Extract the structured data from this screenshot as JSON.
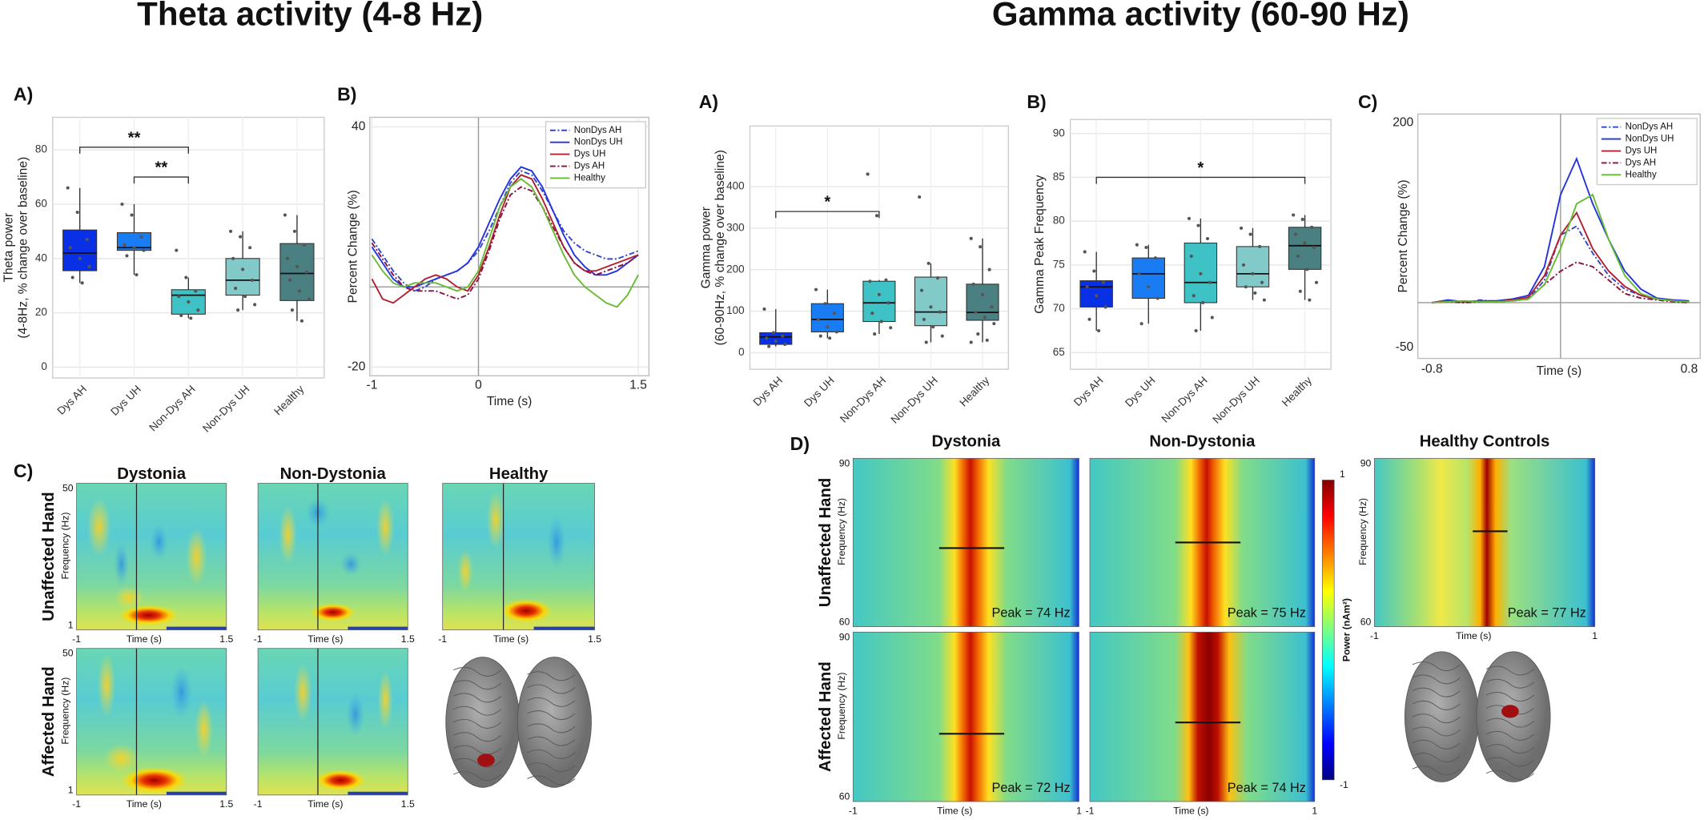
{
  "headings": [
    "Theta activity (4-8 Hz)",
    "Gamma activity (60-90 Hz)"
  ],
  "chart_data": [
    {
      "type": "box",
      "panel": "A)",
      "ylabel": [
        "Theta power",
        "(4-8Hz, % change over baseline)"
      ],
      "categories": [
        "Dys AH",
        "Dys UH",
        "Non-Dys AH",
        "Non-Dys UH",
        "Healthy"
      ],
      "boxes": [
        {
          "q1": 35.5,
          "median": 42,
          "q3": 50.5,
          "whislo": 31,
          "whishi": 66,
          "color": "#0a30e6",
          "points": [
            66,
            57,
            47,
            44,
            40,
            37,
            33,
            31
          ]
        },
        {
          "q1": 43,
          "median": 44,
          "q3": 49.5,
          "whislo": 34,
          "whishi": 60,
          "color": "#1a7cf2",
          "points": [
            60,
            56,
            48,
            45,
            44,
            43,
            41,
            34
          ]
        },
        {
          "q1": 19.5,
          "median": 26.5,
          "q3": 28.5,
          "whislo": 18,
          "whishi": 33,
          "color": "#3fc2c6",
          "points": [
            43,
            33,
            28,
            26,
            24,
            21,
            19,
            18
          ]
        },
        {
          "q1": 26.5,
          "median": 32,
          "q3": 40,
          "whislo": 21,
          "whishi": 50,
          "color": "#82caca",
          "points": [
            50,
            48,
            44,
            40,
            36,
            32,
            29,
            26,
            23,
            21
          ]
        },
        {
          "q1": 24.5,
          "median": 34.5,
          "q3": 45.5,
          "whislo": 17,
          "whishi": 56,
          "color": "#4a8081",
          "points": [
            56,
            50,
            45,
            40,
            37,
            35,
            32,
            28,
            25,
            21,
            17
          ]
        }
      ],
      "annotations": [
        {
          "from": "Dys AH",
          "to": "Non-Dys AH",
          "y": 81,
          "label": "**"
        },
        {
          "from": "Dys UH",
          "to": "Non-Dys AH",
          "y": 70,
          "label": "**"
        }
      ],
      "ylim": [
        -4,
        92
      ],
      "yticks": [
        0,
        20,
        40,
        60,
        80
      ],
      "grid": true
    },
    {
      "type": "line",
      "panel": "B)",
      "xlabel": "Time (s)",
      "ylabel": "Percent Change (%)",
      "x": [
        -1,
        -0.9,
        -0.8,
        -0.7,
        -0.6,
        -0.5,
        -0.4,
        -0.3,
        -0.2,
        -0.1,
        0,
        0.1,
        0.2,
        0.3,
        0.4,
        0.5,
        0.6,
        0.7,
        0.8,
        0.9,
        1,
        1.1,
        1.2,
        1.3,
        1.4,
        1.5
      ],
      "series": [
        {
          "name": "NonDys AH",
          "color": "#3344cc",
          "linestyle": "dashdot",
          "values": [
            12,
            8,
            4,
            1,
            -1,
            0,
            2,
            3,
            4,
            6,
            9,
            14,
            20,
            26,
            29,
            28,
            24,
            19,
            14,
            11,
            9,
            8,
            7,
            7,
            8,
            9
          ]
        },
        {
          "name": "NonDys UH",
          "color": "#2233dd",
          "linestyle": "solid",
          "values": [
            10,
            6,
            2,
            0,
            0,
            1,
            2,
            3,
            4,
            6,
            10,
            16,
            22,
            27,
            30,
            29,
            25,
            19,
            13,
            8,
            5,
            3,
            3,
            4,
            6,
            8
          ]
        },
        {
          "name": "Dys UH",
          "color": "#b02030",
          "linestyle": "solid",
          "values": [
            2,
            -3,
            -4,
            -2,
            0,
            2,
            3,
            2,
            0,
            -1,
            3,
            10,
            18,
            25,
            28,
            27,
            22,
            16,
            10,
            6,
            4,
            4,
            5,
            6,
            7,
            8
          ]
        },
        {
          "name": "Dys AH",
          "color": "#8a1040",
          "linestyle": "dashdot",
          "values": [
            11,
            7,
            3,
            0,
            -1,
            -1,
            -1,
            -2,
            -3,
            -2,
            2,
            9,
            17,
            23,
            25,
            24,
            20,
            15,
            10,
            6,
            4,
            3,
            4,
            5,
            6,
            8
          ]
        },
        {
          "name": "Healthy",
          "color": "#66bb33",
          "linestyle": "solid",
          "values": [
            8,
            4,
            1,
            0,
            1,
            1,
            1,
            0,
            -1,
            0,
            4,
            12,
            20,
            25,
            27,
            25,
            20,
            14,
            8,
            3,
            0,
            -2,
            -4,
            -5,
            -2,
            3
          ]
        }
      ],
      "xlim": [
        -1.02,
        1.6
      ],
      "xticks": [
        -1,
        0,
        1.5
      ],
      "ylim": [
        -22.2,
        42.4
      ],
      "yticks": [
        -20,
        40
      ],
      "grid": true,
      "legend": "upper right"
    },
    {
      "type": "box",
      "panel": "A)",
      "ylabel": [
        "Gamma power",
        "(60-90Hz, % change over baseline)"
      ],
      "categories": [
        "Dys AH",
        "Dys UH",
        "Non-Dys AH",
        "Non-Dys UH",
        "Healthy"
      ],
      "boxes": [
        {
          "q1": 20,
          "median": 38,
          "q3": 48,
          "whislo": 15,
          "whishi": 105,
          "color": "#0a30e6",
          "points": [
            105,
            48,
            40,
            35,
            28,
            20,
            15
          ]
        },
        {
          "q1": 50,
          "median": 80,
          "q3": 118,
          "whislo": 35,
          "whishi": 152,
          "color": "#1a7cf2",
          "points": [
            152,
            118,
            95,
            80,
            62,
            50,
            40,
            35
          ]
        },
        {
          "q1": 75,
          "median": 120,
          "q3": 172,
          "whislo": 45,
          "whishi": 175,
          "color": "#3fc2c6",
          "points": [
            430,
            330,
            175,
            172,
            140,
            120,
            95,
            75,
            60,
            45
          ]
        },
        {
          "q1": 65,
          "median": 98,
          "q3": 182,
          "whislo": 25,
          "whishi": 215,
          "color": "#82caca",
          "points": [
            375,
            215,
            180,
            150,
            110,
            98,
            80,
            62,
            40,
            25
          ]
        },
        {
          "q1": 78,
          "median": 97,
          "q3": 165,
          "whislo": 25,
          "whishi": 275,
          "color": "#4a8081",
          "points": [
            275,
            255,
            200,
            165,
            140,
            110,
            97,
            85,
            70,
            45,
            30,
            25
          ]
        }
      ],
      "annotations": [
        {
          "from": "Dys AH",
          "to": "Non-Dys AH",
          "y": 340,
          "label": "*"
        }
      ],
      "ylim": [
        -40,
        546
      ],
      "yticks": [
        0,
        100,
        200,
        300,
        400
      ],
      "grid": true
    },
    {
      "type": "box",
      "panel": "B)",
      "ylabel": [
        "Gamma Peak Frequency"
      ],
      "categories": [
        "Dys AH",
        "Dys UH",
        "Non-Dys AH",
        "Non-Dys UH",
        "Healthy"
      ],
      "boxes": [
        {
          "q1": 70.2,
          "median": 72.5,
          "q3": 73.2,
          "whislo": 67.5,
          "whishi": 76.5,
          "color": "#0a30e6",
          "points": [
            76.5,
            74.3,
            73,
            72.5,
            71.5,
            70.2,
            68.8,
            67.5
          ]
        },
        {
          "q1": 71.2,
          "median": 74,
          "q3": 75.8,
          "whislo": 68.3,
          "whishi": 77.3,
          "color": "#1a7cf2",
          "points": [
            77.3,
            77,
            75.8,
            74,
            72.5,
            71.2,
            68.3
          ]
        },
        {
          "q1": 70.7,
          "median": 73,
          "q3": 77.5,
          "whislo": 67.5,
          "whishi": 80.3,
          "color": "#3fc2c6",
          "points": [
            80.3,
            79.5,
            78,
            76,
            74,
            73,
            71.5,
            70.7,
            69,
            67.5
          ]
        },
        {
          "q1": 72.5,
          "median": 74,
          "q3": 77.1,
          "whislo": 71,
          "whishi": 79.2,
          "color": "#82caca",
          "points": [
            79.2,
            78.5,
            77.1,
            75,
            74,
            73,
            72.5,
            71.8,
            71
          ]
        },
        {
          "q1": 74.5,
          "median": 77.2,
          "q3": 79.3,
          "whislo": 71,
          "whishi": 80.7,
          "color": "#4a8081",
          "points": [
            80.7,
            80.2,
            79.3,
            78.5,
            77.5,
            77,
            76,
            74.5,
            73,
            72,
            71
          ]
        }
      ],
      "annotations": [
        {
          "from": "Dys AH",
          "to": "Healthy",
          "y": 85,
          "label": "*"
        }
      ],
      "ylim": [
        63.1,
        91.6
      ],
      "yticks": [
        65,
        70,
        75,
        80,
        85,
        90
      ],
      "grid": true
    },
    {
      "type": "line",
      "panel": "C)",
      "xlabel": "Time (s)",
      "ylabel": "Percent Change (%)",
      "x": [
        -0.8,
        -0.7,
        -0.6,
        -0.5,
        -0.4,
        -0.3,
        -0.2,
        -0.1,
        0,
        0.1,
        0.2,
        0.3,
        0.4,
        0.5,
        0.6,
        0.7,
        0.8
      ],
      "series": [
        {
          "name": "NonDys AH",
          "color": "#3344cc",
          "linestyle": "dashdot",
          "values": [
            0,
            2,
            0,
            3,
            1,
            2,
            4,
            25,
            75,
            85,
            55,
            30,
            15,
            8,
            4,
            2,
            1
          ]
        },
        {
          "name": "NonDys UH",
          "color": "#2233dd",
          "linestyle": "solid",
          "values": [
            0,
            3,
            1,
            2,
            2,
            4,
            8,
            40,
            120,
            160,
            110,
            70,
            35,
            15,
            5,
            3,
            2
          ]
        },
        {
          "name": "Dys UH",
          "color": "#b02030",
          "linestyle": "solid",
          "values": [
            0,
            2,
            1,
            2,
            1,
            3,
            6,
            30,
            75,
            100,
            60,
            35,
            18,
            8,
            4,
            2,
            1
          ]
        },
        {
          "name": "Dys AH",
          "color": "#8a1040",
          "linestyle": "dashdot",
          "values": [
            0,
            1,
            0,
            1,
            2,
            2,
            4,
            20,
            35,
            45,
            40,
            25,
            10,
            5,
            3,
            1,
            0
          ]
        },
        {
          "name": "Healthy",
          "color": "#66bb33",
          "linestyle": "solid",
          "values": [
            0,
            1,
            2,
            1,
            1,
            2,
            4,
            20,
            60,
            110,
            120,
            70,
            30,
            10,
            4,
            2,
            1
          ]
        }
      ],
      "xlim": [
        -0.888,
        0.869
      ],
      "xticks": [
        -0.8,
        0.8
      ],
      "ylim": [
        -62,
        209.7
      ],
      "yticks": [
        -50,
        200
      ],
      "grid": false,
      "legend": "upper right"
    }
  ],
  "tf_figures": [
    {
      "panel": "C)",
      "columns": [
        "Dystonia",
        "Non-Dystonia",
        "Healthy"
      ],
      "rows": [
        "Unaffected Hand",
        "Affected Hand"
      ],
      "ylabel": "Frequency (Hz)",
      "ylim": [
        1,
        50
      ],
      "yticks": [
        1,
        50
      ],
      "xlabel": "Time (s)",
      "xlim": [
        -1,
        1.5
      ],
      "xticks": [
        -1,
        1.5
      ]
    },
    {
      "panel": "D)",
      "columns": [
        "Dystonia",
        "Non-Dystonia",
        "Healthy Controls"
      ],
      "rows": [
        "Unaffected Hand",
        "Affected Hand"
      ],
      "ylabel": "Frequency (Hz)",
      "ylim": [
        60,
        90
      ],
      "yticks": [
        60,
        90
      ],
      "xlabel": "Time (s)",
      "xlim": [
        -1,
        1
      ],
      "xticks": [
        -1,
        1
      ],
      "peaks": [
        [
          74,
          75,
          77
        ],
        [
          72,
          74
        ]
      ],
      "peak_labels": [
        [
          "Peak = 74 Hz",
          "Peak = 75 Hz",
          "Peak = 77 Hz"
        ],
        [
          "Peak = 72 Hz",
          "Peak = 74 Hz"
        ]
      ],
      "colorbar_label": "Power (nAm²)",
      "clim": [
        -1,
        1
      ],
      "cticks": [
        -1,
        1
      ]
    }
  ]
}
